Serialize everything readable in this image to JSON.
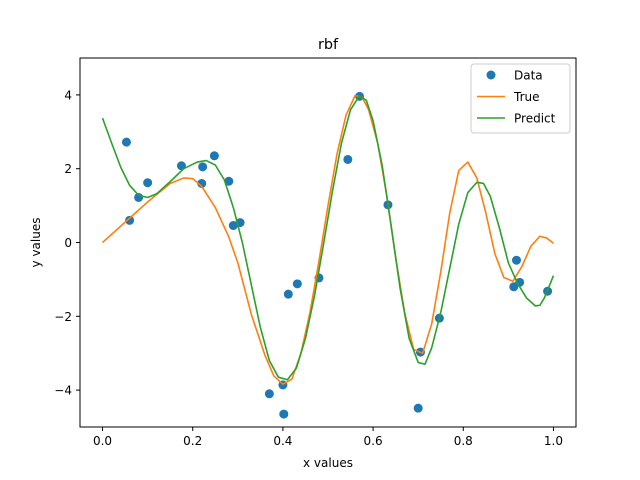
{
  "chart_data": {
    "type": "line",
    "title": "rbf",
    "xlabel": "x values",
    "ylabel": "y values",
    "xlim": [
      -0.05,
      1.05
    ],
    "ylim": [
      -5,
      5
    ],
    "xticks": [
      0.0,
      0.2,
      0.4,
      0.6,
      0.8,
      1.0
    ],
    "xtick_labels": [
      "0.0",
      "0.2",
      "0.4",
      "0.6",
      "0.8",
      "1.0"
    ],
    "yticks": [
      -4,
      -2,
      0,
      2,
      4
    ],
    "ytick_labels": [
      "−4",
      "−2",
      "0",
      "2",
      "4"
    ],
    "grid": false,
    "legend_position": "top-right",
    "series": [
      {
        "name": "Data",
        "kind": "scatter",
        "color": "#1f77b4",
        "points": [
          [
            0.053,
            2.72
          ],
          [
            0.06,
            0.6
          ],
          [
            0.08,
            1.22
          ],
          [
            0.1,
            1.62
          ],
          [
            0.175,
            2.08
          ],
          [
            0.22,
            1.6
          ],
          [
            0.222,
            2.05
          ],
          [
            0.248,
            2.35
          ],
          [
            0.28,
            1.66
          ],
          [
            0.29,
            0.46
          ],
          [
            0.305,
            0.54
          ],
          [
            0.37,
            -4.1
          ],
          [
            0.4,
            -3.86
          ],
          [
            0.402,
            -4.65
          ],
          [
            0.412,
            -1.4
          ],
          [
            0.432,
            -1.12
          ],
          [
            0.48,
            -0.96
          ],
          [
            0.544,
            2.25
          ],
          [
            0.57,
            3.96
          ],
          [
            0.633,
            1.02
          ],
          [
            0.7,
            -4.49
          ],
          [
            0.705,
            -2.97
          ],
          [
            0.747,
            -2.05
          ],
          [
            0.912,
            -1.2
          ],
          [
            0.918,
            -0.48
          ],
          [
            0.925,
            -1.08
          ],
          [
            0.987,
            -1.32
          ]
        ]
      },
      {
        "name": "True",
        "kind": "line",
        "color": "#ff7f0e",
        "points": [
          [
            0.0,
            0.0
          ],
          [
            0.05,
            0.55
          ],
          [
            0.1,
            1.1
          ],
          [
            0.15,
            1.6
          ],
          [
            0.18,
            1.75
          ],
          [
            0.2,
            1.73
          ],
          [
            0.22,
            1.52
          ],
          [
            0.25,
            0.95
          ],
          [
            0.28,
            0.15
          ],
          [
            0.3,
            -0.55
          ],
          [
            0.33,
            -1.95
          ],
          [
            0.36,
            -3.05
          ],
          [
            0.38,
            -3.62
          ],
          [
            0.4,
            -3.84
          ],
          [
            0.42,
            -3.7
          ],
          [
            0.44,
            -3.0
          ],
          [
            0.46,
            -1.9
          ],
          [
            0.48,
            -0.5
          ],
          [
            0.5,
            1.0
          ],
          [
            0.52,
            2.4
          ],
          [
            0.54,
            3.45
          ],
          [
            0.56,
            3.98
          ],
          [
            0.575,
            3.95
          ],
          [
            0.59,
            3.6
          ],
          [
            0.61,
            2.7
          ],
          [
            0.63,
            1.3
          ],
          [
            0.65,
            -0.4
          ],
          [
            0.67,
            -1.9
          ],
          [
            0.69,
            -2.9
          ],
          [
            0.71,
            -3.0
          ],
          [
            0.73,
            -2.2
          ],
          [
            0.75,
            -0.8
          ],
          [
            0.77,
            0.8
          ],
          [
            0.79,
            1.95
          ],
          [
            0.81,
            2.18
          ],
          [
            0.83,
            1.75
          ],
          [
            0.85,
            0.8
          ],
          [
            0.87,
            -0.3
          ],
          [
            0.89,
            -0.95
          ],
          [
            0.91,
            -1.05
          ],
          [
            0.93,
            -0.65
          ],
          [
            0.95,
            -0.1
          ],
          [
            0.97,
            0.17
          ],
          [
            0.985,
            0.12
          ],
          [
            1.0,
            -0.02
          ]
        ]
      },
      {
        "name": "Predict",
        "kind": "line",
        "color": "#2ca02c",
        "points": [
          [
            0.0,
            3.37
          ],
          [
            0.02,
            2.7
          ],
          [
            0.04,
            2.05
          ],
          [
            0.06,
            1.55
          ],
          [
            0.08,
            1.28
          ],
          [
            0.1,
            1.22
          ],
          [
            0.12,
            1.32
          ],
          [
            0.15,
            1.65
          ],
          [
            0.18,
            2.0
          ],
          [
            0.21,
            2.18
          ],
          [
            0.23,
            2.22
          ],
          [
            0.25,
            2.1
          ],
          [
            0.27,
            1.7
          ],
          [
            0.29,
            0.95
          ],
          [
            0.31,
            0.0
          ],
          [
            0.33,
            -1.15
          ],
          [
            0.35,
            -2.3
          ],
          [
            0.37,
            -3.2
          ],
          [
            0.39,
            -3.65
          ],
          [
            0.41,
            -3.72
          ],
          [
            0.43,
            -3.4
          ],
          [
            0.45,
            -2.6
          ],
          [
            0.47,
            -1.45
          ],
          [
            0.49,
            -0.05
          ],
          [
            0.51,
            1.4
          ],
          [
            0.53,
            2.7
          ],
          [
            0.55,
            3.6
          ],
          [
            0.57,
            3.98
          ],
          [
            0.585,
            3.85
          ],
          [
            0.6,
            3.3
          ],
          [
            0.62,
            2.1
          ],
          [
            0.64,
            0.45
          ],
          [
            0.66,
            -1.25
          ],
          [
            0.68,
            -2.6
          ],
          [
            0.7,
            -3.25
          ],
          [
            0.715,
            -3.3
          ],
          [
            0.73,
            -2.85
          ],
          [
            0.75,
            -1.9
          ],
          [
            0.77,
            -0.7
          ],
          [
            0.79,
            0.5
          ],
          [
            0.81,
            1.35
          ],
          [
            0.83,
            1.63
          ],
          [
            0.845,
            1.6
          ],
          [
            0.86,
            1.25
          ],
          [
            0.88,
            0.4
          ],
          [
            0.9,
            -0.55
          ],
          [
            0.92,
            -1.1
          ],
          [
            0.94,
            -1.5
          ],
          [
            0.96,
            -1.72
          ],
          [
            0.97,
            -1.7
          ],
          [
            0.98,
            -1.5
          ],
          [
            0.99,
            -1.2
          ],
          [
            1.0,
            -0.9
          ]
        ]
      }
    ]
  }
}
